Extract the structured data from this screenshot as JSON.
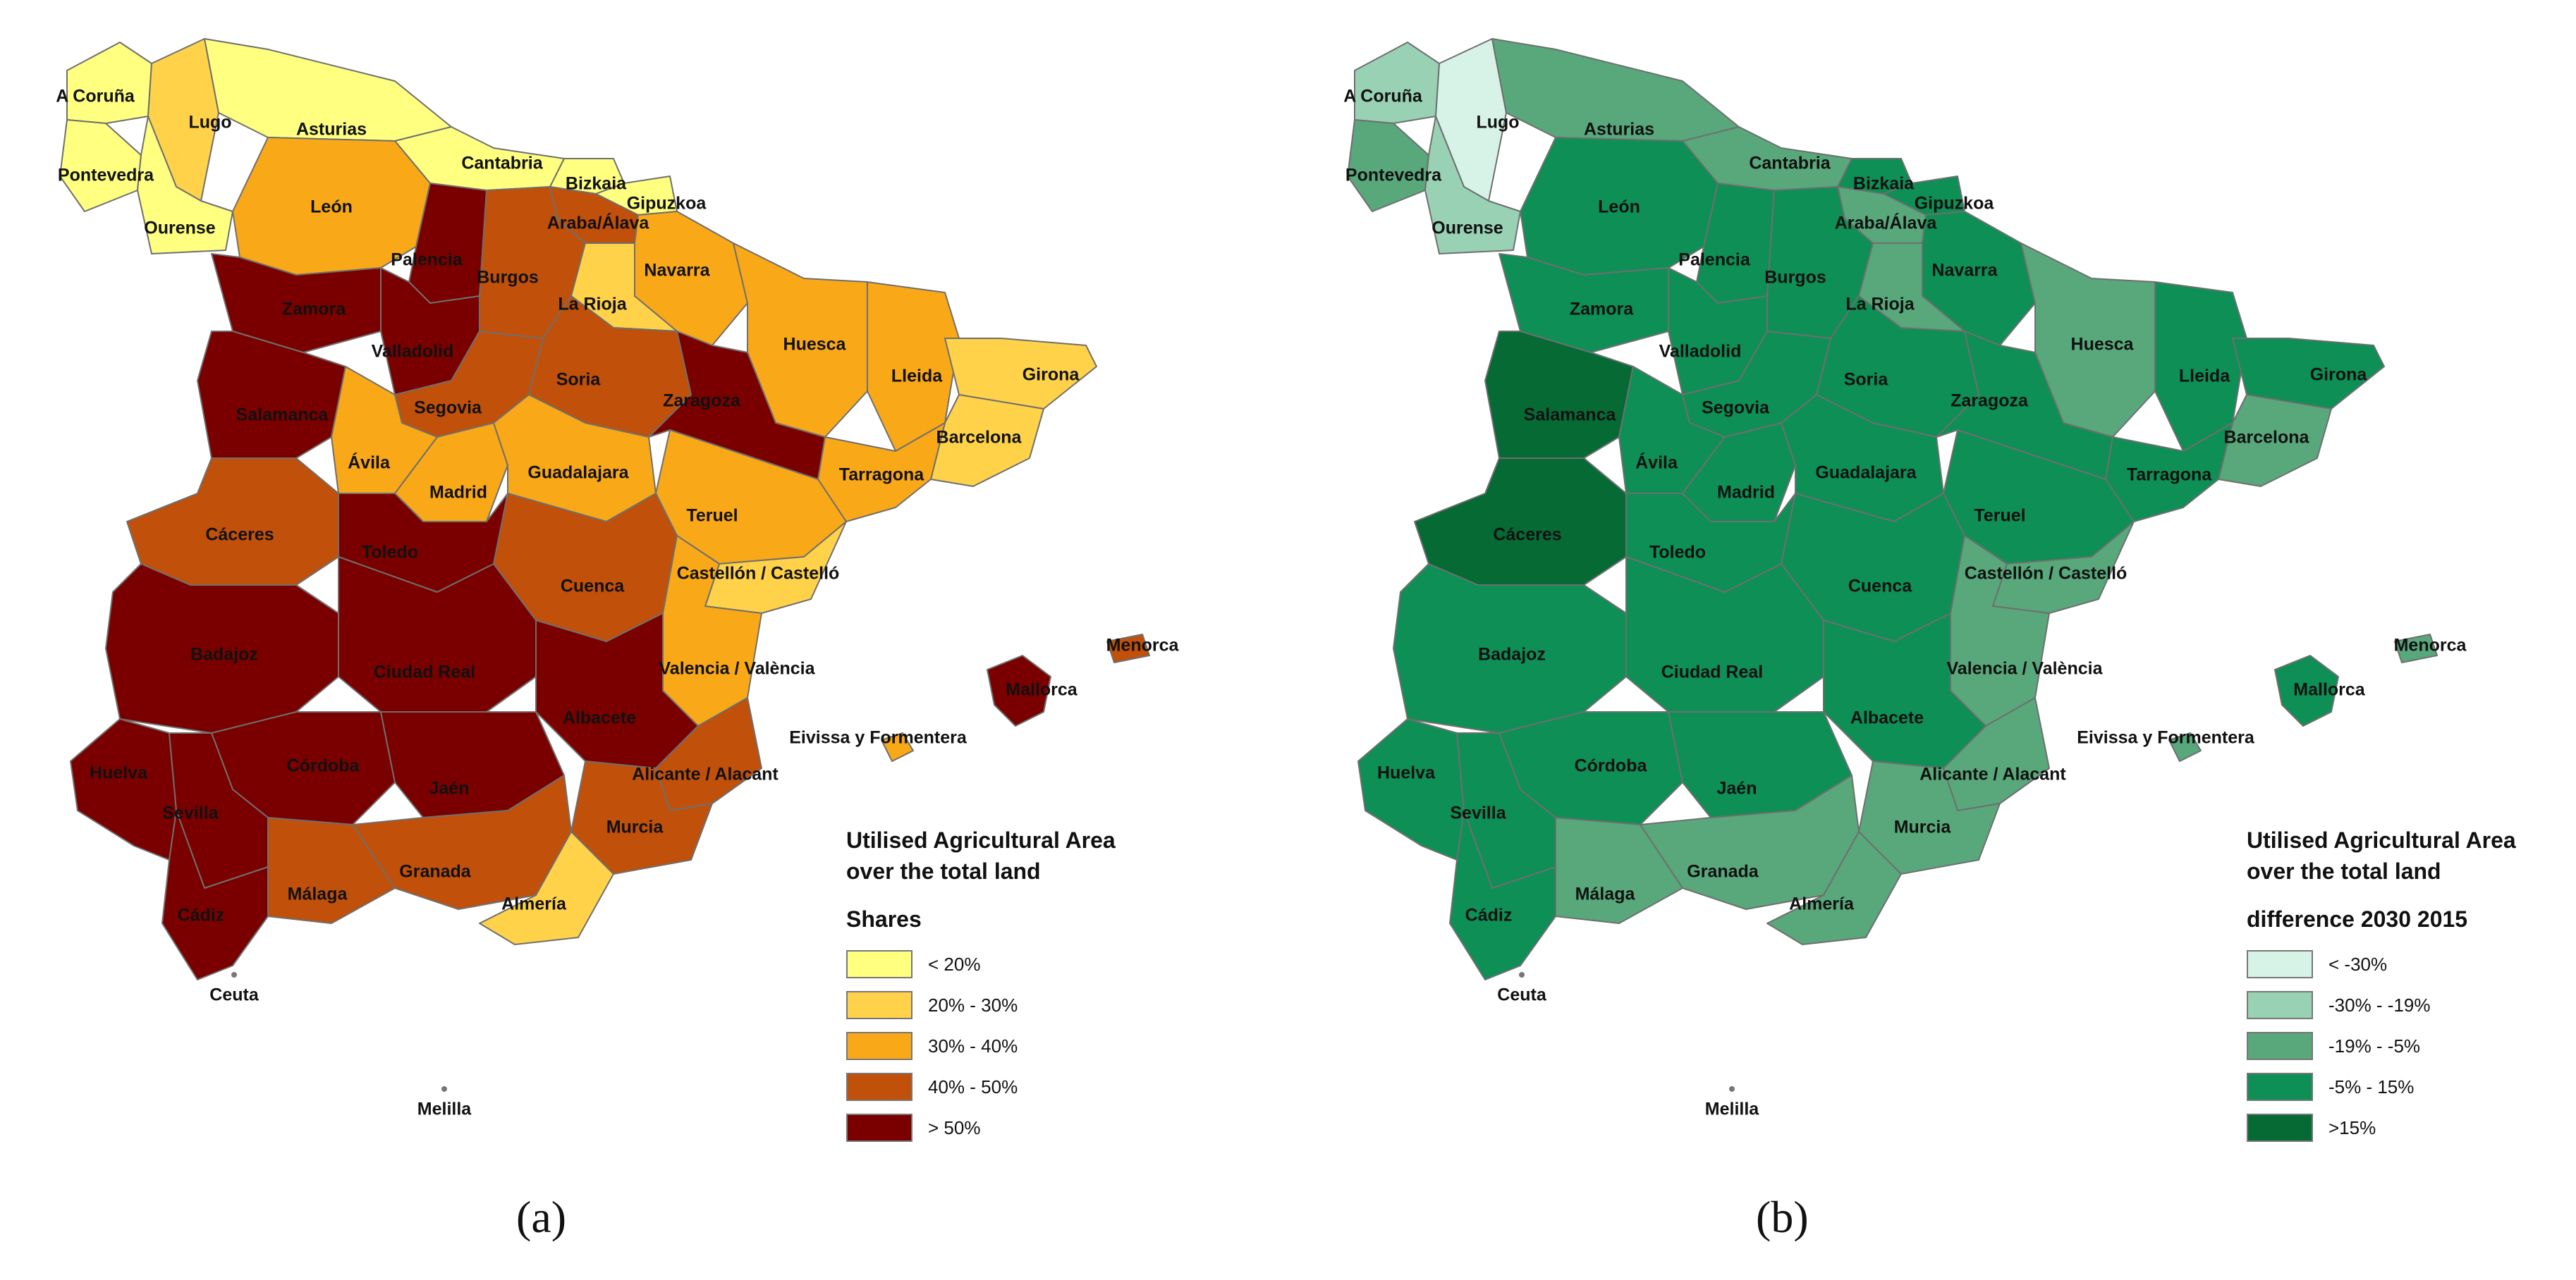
{
  "panels": [
    {
      "id": "a",
      "caption": "(a)",
      "legend": {
        "title_line1": "Utilised Agricultural Area",
        "title_line2": "over the total land",
        "subtitle": "Shares",
        "classes": [
          {
            "label": "<  20%",
            "color": "#ffff80"
          },
          {
            "label": "20% - 30%",
            "color": "#ffd24a"
          },
          {
            "label": "30% - 40%",
            "color": "#f9a818"
          },
          {
            "label": "40% - 50%",
            "color": "#c0500a"
          },
          {
            "label": "> 50%",
            "color": "#7a0000"
          }
        ]
      }
    },
    {
      "id": "b",
      "caption": "(b)",
      "legend": {
        "title_line1": "Utilised Agricultural Area",
        "title_line2": "over the total land",
        "subtitle": "difference 2030 2015",
        "classes": [
          {
            "label": "< -30%",
            "color": "#d7f3e8"
          },
          {
            "label": "-30% - -19%",
            "color": "#99d1b4"
          },
          {
            "label": "-19% - -5%",
            "color": "#58a87b"
          },
          {
            "label": "-5% - 15%",
            "color": "#0d8f55"
          },
          {
            "label": ">15%",
            "color": "#066a35"
          }
        ]
      }
    }
  ],
  "provinces": [
    {
      "name": "A Coruña",
      "a": 0,
      "b": 1
    },
    {
      "name": "Lugo",
      "a": 1,
      "b": 0
    },
    {
      "name": "Asturias",
      "a": 0,
      "b": 2
    },
    {
      "name": "Pontevedra",
      "a": 0,
      "b": 2
    },
    {
      "name": "Ourense",
      "a": 0,
      "b": 1
    },
    {
      "name": "Cantabria",
      "a": 0,
      "b": 2
    },
    {
      "name": "Bizkaia",
      "a": 0,
      "b": 3
    },
    {
      "name": "Gipuzkoa",
      "a": 0,
      "b": 3
    },
    {
      "name": "Araba/Álava",
      "a": 3,
      "b": 2
    },
    {
      "name": "León",
      "a": 2,
      "b": 3
    },
    {
      "name": "Palencia",
      "a": 4,
      "b": 3
    },
    {
      "name": "Burgos",
      "a": 3,
      "b": 3
    },
    {
      "name": "Navarra",
      "a": 2,
      "b": 3
    },
    {
      "name": "La Rioja",
      "a": 1,
      "b": 2
    },
    {
      "name": "Zamora",
      "a": 4,
      "b": 3
    },
    {
      "name": "Valladolid",
      "a": 4,
      "b": 3
    },
    {
      "name": "Huesca",
      "a": 2,
      "b": 2
    },
    {
      "name": "Lleida",
      "a": 2,
      "b": 3
    },
    {
      "name": "Girona",
      "a": 1,
      "b": 3
    },
    {
      "name": "Soria",
      "a": 3,
      "b": 3
    },
    {
      "name": "Zaragoza",
      "a": 4,
      "b": 3
    },
    {
      "name": "Salamanca",
      "a": 4,
      "b": 4
    },
    {
      "name": "Segovia",
      "a": 3,
      "b": 3
    },
    {
      "name": "Barcelona",
      "a": 1,
      "b": 2
    },
    {
      "name": "Ávila",
      "a": 2,
      "b": 3
    },
    {
      "name": "Madrid",
      "a": 2,
      "b": 3
    },
    {
      "name": "Guadalajara",
      "a": 2,
      "b": 3
    },
    {
      "name": "Tarragona",
      "a": 2,
      "b": 3
    },
    {
      "name": "Teruel",
      "a": 2,
      "b": 3
    },
    {
      "name": "Cáceres",
      "a": 3,
      "b": 4
    },
    {
      "name": "Toledo",
      "a": 4,
      "b": 3
    },
    {
      "name": "Cuenca",
      "a": 3,
      "b": 3
    },
    {
      "name": "Castellón / Castelló",
      "a": 1,
      "b": 2
    },
    {
      "name": "Badajoz",
      "a": 4,
      "b": 3
    },
    {
      "name": "Ciudad Real",
      "a": 4,
      "b": 3
    },
    {
      "name": "Valencia / València",
      "a": 2,
      "b": 2
    },
    {
      "name": "Albacete",
      "a": 4,
      "b": 3
    },
    {
      "name": "Mallorca",
      "a": 4,
      "b": 3
    },
    {
      "name": "Menorca",
      "a": 3,
      "b": 2
    },
    {
      "name": "Eivissa y Formentera",
      "a": 2,
      "b": 2
    },
    {
      "name": "Huelva",
      "a": 4,
      "b": 3
    },
    {
      "name": "Córdoba",
      "a": 4,
      "b": 3
    },
    {
      "name": "Jaén",
      "a": 4,
      "b": 3
    },
    {
      "name": "Alicante / Alacant",
      "a": 3,
      "b": 2
    },
    {
      "name": "Sevilla",
      "a": 4,
      "b": 3
    },
    {
      "name": "Murcia",
      "a": 3,
      "b": 2
    },
    {
      "name": "Granada",
      "a": 3,
      "b": 2
    },
    {
      "name": "Almería",
      "a": 1,
      "b": 2
    },
    {
      "name": "Málaga",
      "a": 3,
      "b": 2
    },
    {
      "name": "Cádiz",
      "a": 4,
      "b": 3
    },
    {
      "name": "Ceuta",
      "a": null,
      "b": null
    },
    {
      "name": "Melilla",
      "a": null,
      "b": null
    }
  ]
}
